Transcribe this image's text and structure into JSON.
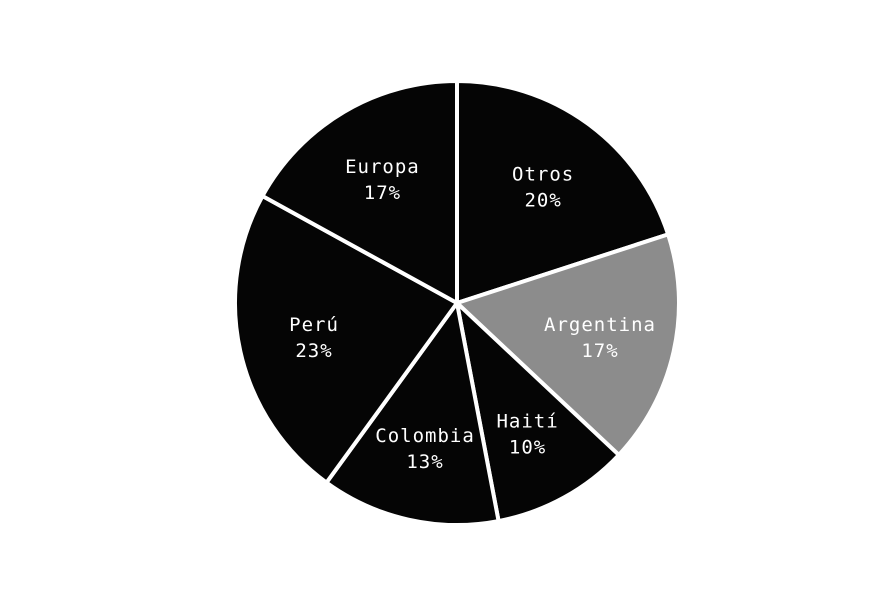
{
  "chart_data": {
    "type": "pie",
    "slices": [
      {
        "label": "Otros",
        "pct_label": "20%",
        "value": 20,
        "color": "#050505",
        "text_color": "#ffffff"
      },
      {
        "label": "Argentina",
        "pct_label": "17%",
        "value": 17,
        "color": "#8c8c8c",
        "text_color": "#ffffff"
      },
      {
        "label": "Haití",
        "pct_label": "10%",
        "value": 10,
        "color": "#050505",
        "text_color": "#ffffff"
      },
      {
        "label": "Colombia",
        "pct_label": "13%",
        "value": 13,
        "color": "#050505",
        "text_color": "#ffffff"
      },
      {
        "label": "Perú",
        "pct_label": "23%",
        "value": 23,
        "color": "#050505",
        "text_color": "#ffffff"
      },
      {
        "label": "Europa",
        "pct_label": "17%",
        "value": 17,
        "color": "#050505",
        "text_color": "#ffffff"
      }
    ],
    "start_angle_deg": 0,
    "direction": "clockwise",
    "separator_color": "#ffffff",
    "legend": "none"
  }
}
